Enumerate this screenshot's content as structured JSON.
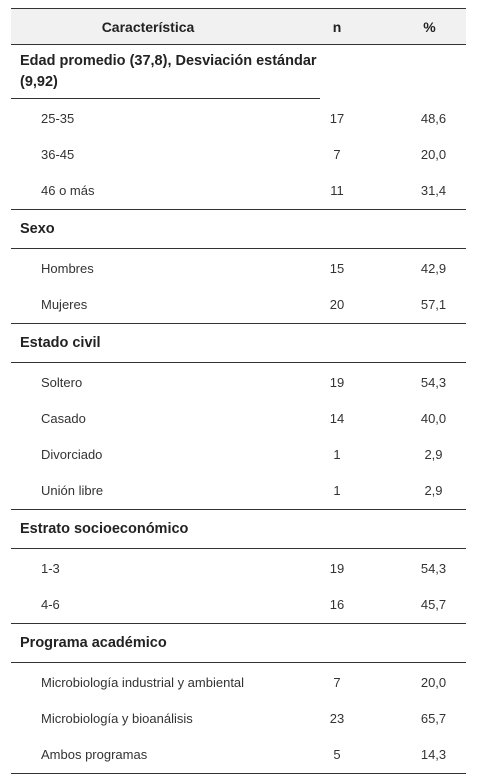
{
  "table": {
    "headers": {
      "characteristic": "Característica",
      "n": "n",
      "percent": "%"
    },
    "sections": [
      {
        "title": "Edad promedio (37,8),  Desviación estándar (9,92)",
        "rows": [
          {
            "label": "25-35",
            "n": "17",
            "pct": "48,6"
          },
          {
            "label": "36-45",
            "n": "7",
            "pct": "20,0"
          },
          {
            "label": "46 o más",
            "n": "11",
            "pct": "31,4"
          }
        ]
      },
      {
        "title": "Sexo",
        "rows": [
          {
            "label": "Hombres",
            "n": "15",
            "pct": "42,9"
          },
          {
            "label": "Mujeres",
            "n": "20",
            "pct": "57,1"
          }
        ]
      },
      {
        "title": "Estado civil",
        "rows": [
          {
            "label": "Soltero",
            "n": "19",
            "pct": "54,3"
          },
          {
            "label": "Casado",
            "n": "14",
            "pct": "40,0"
          },
          {
            "label": "Divorciado",
            "n": "1",
            "pct": "2,9"
          },
          {
            "label": "Unión libre",
            "n": "1",
            "pct": "2,9"
          }
        ]
      },
      {
        "title": "Estrato socioeconómico",
        "rows": [
          {
            "label": "1-3",
            "n": "19",
            "pct": "54,3"
          },
          {
            "label": "4-6",
            "n": "16",
            "pct": "45,7"
          }
        ]
      },
      {
        "title": "Programa académico",
        "rows": [
          {
            "label": "Microbiología industrial y ambiental",
            "n": "7",
            "pct": "20,0"
          },
          {
            "label": "Microbiología y bioanálisis",
            "n": "23",
            "pct": "65,7"
          },
          {
            "label": "Ambos programas",
            "n": "5",
            "pct": "14,3"
          }
        ]
      }
    ]
  }
}
